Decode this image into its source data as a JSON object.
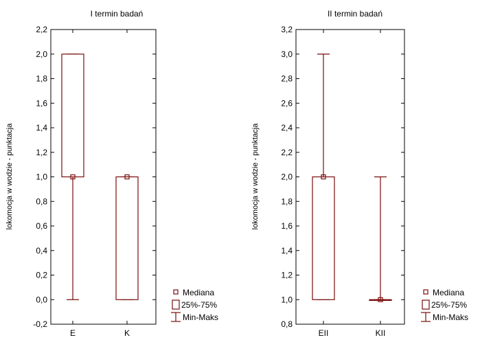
{
  "colors": {
    "box": "#7a0c0c",
    "axis": "#000000",
    "background": "#ffffff"
  },
  "legend": {
    "median_label": "Mediana",
    "iqr_label": "25%-75%",
    "range_label": "Min-Maks"
  },
  "chart_data": [
    {
      "type": "box",
      "title": "I termin badań",
      "ylabel": "lokomocja w wodzie - punktacja",
      "xlabel": "",
      "ylim": [
        -0.2,
        2.2
      ],
      "yticks": [
        "-0,2",
        "0,0",
        "0,2",
        "0,4",
        "0,6",
        "0,8",
        "1,0",
        "1,2",
        "1,4",
        "1,6",
        "1,8",
        "2,0",
        "2,2"
      ],
      "categories": [
        "E",
        "K"
      ],
      "boxes": [
        {
          "category": "E",
          "min": 0,
          "q1": 1,
          "median": 1,
          "q3": 2,
          "max": 2
        },
        {
          "category": "K",
          "min": 0,
          "q1": 0,
          "median": 1,
          "q3": 1,
          "max": 1
        }
      ],
      "grid": false,
      "legend_position": "bottom-right"
    },
    {
      "type": "box",
      "title": "II termin badań",
      "ylabel": "lokomocja w wodzie - punktacja",
      "xlabel": "",
      "ylim": [
        0.8,
        3.2
      ],
      "yticks": [
        "0,8",
        "1,0",
        "1,2",
        "1,4",
        "1,6",
        "1,8",
        "2,0",
        "2,2",
        "2,4",
        "2,6",
        "2,8",
        "3,0",
        "3,2"
      ],
      "categories": [
        "EII",
        "KII"
      ],
      "boxes": [
        {
          "category": "EII",
          "min": 1,
          "q1": 1,
          "median": 2,
          "q3": 2,
          "max": 3
        },
        {
          "category": "KII",
          "min": 1,
          "q1": 1,
          "median": 1,
          "q3": 1,
          "max": 2
        }
      ],
      "grid": false,
      "legend_position": "bottom-right"
    }
  ]
}
